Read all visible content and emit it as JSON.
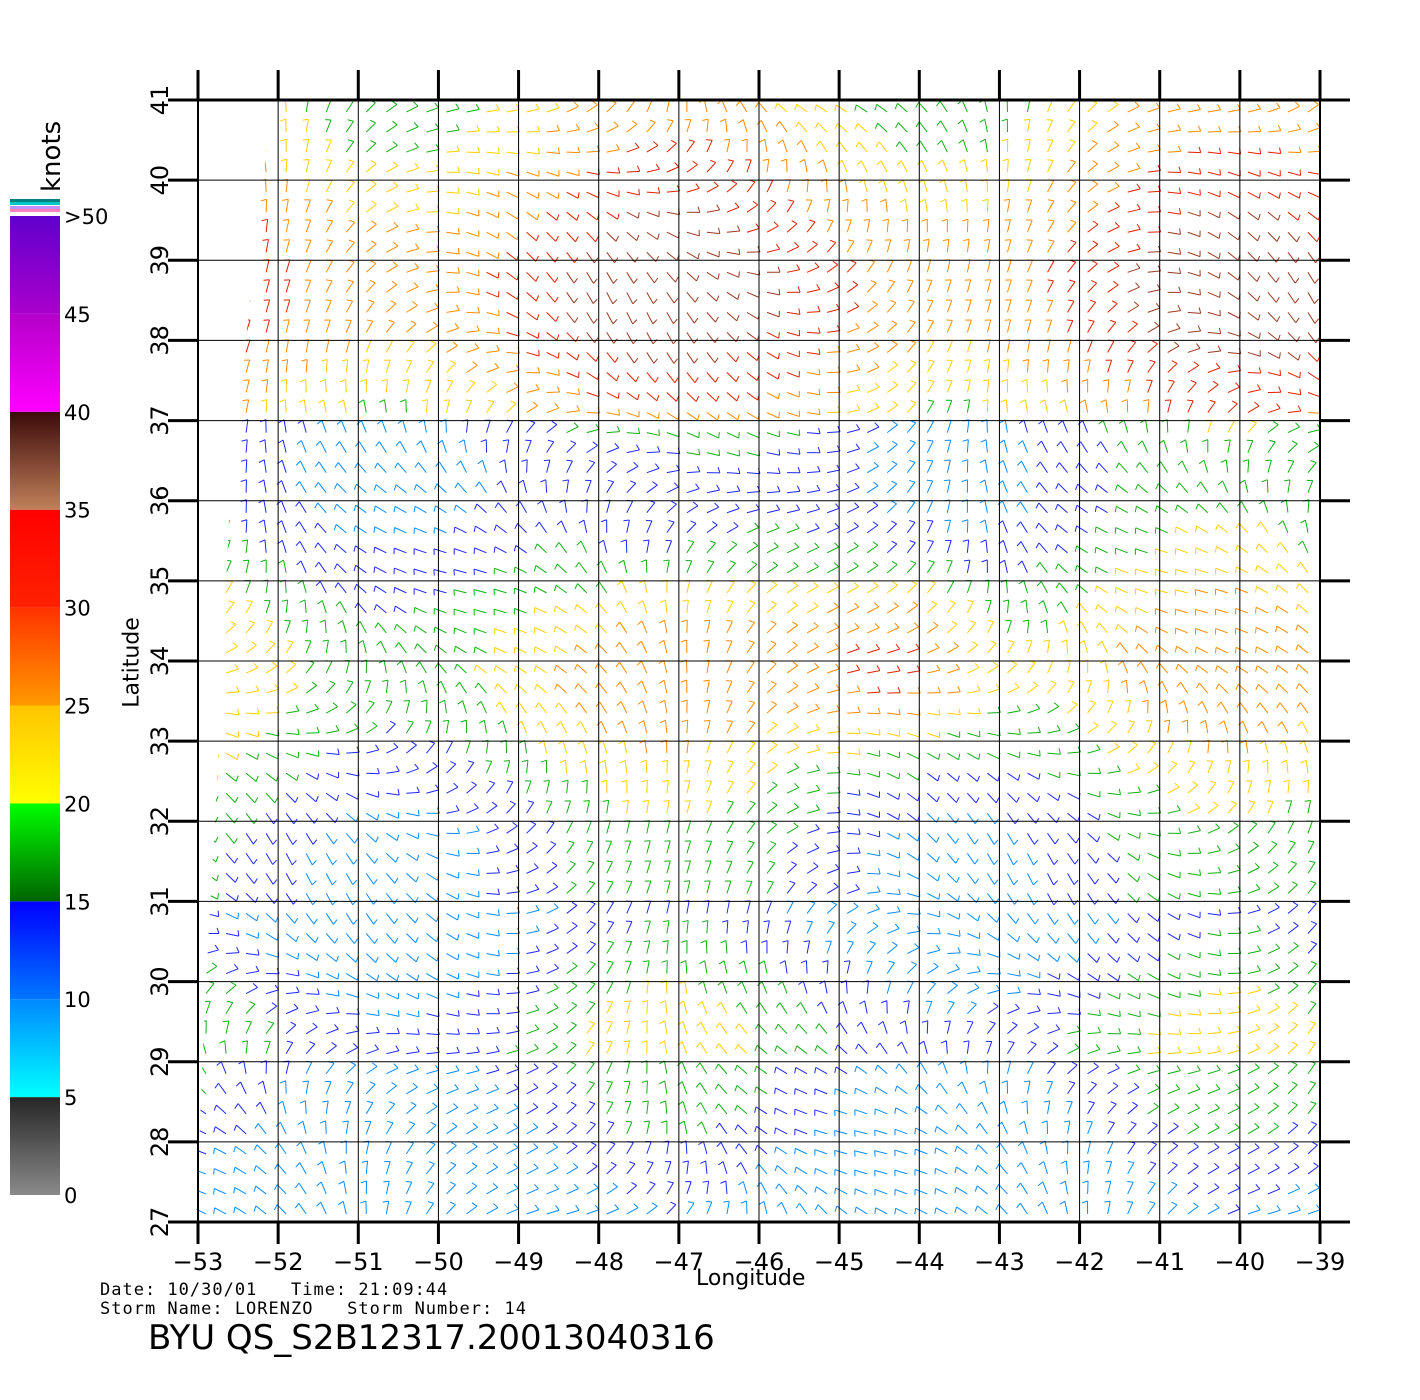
{
  "chart_data": {
    "type": "wind-vector-map",
    "xlabel": "Longitude",
    "ylabel": "Latitude",
    "xlim": [
      -53,
      -39
    ],
    "ylim": [
      27,
      41
    ],
    "x_ticks": [
      "−53",
      "−52",
      "−51",
      "−50",
      "−49",
      "−48",
      "−47",
      "−46",
      "−45",
      "−44",
      "−43",
      "−42",
      "−41",
      "−40",
      "−39"
    ],
    "y_ticks": [
      "27",
      "28",
      "29",
      "30",
      "31",
      "32",
      "33",
      "34",
      "35",
      "36",
      "37",
      "38",
      "39",
      "40",
      "41"
    ],
    "grid": true,
    "colorbar": {
      "title": "knots",
      "labels": [
        "0",
        "5",
        "10",
        "15",
        "20",
        "25",
        "30",
        "35",
        "40",
        "45",
        ">50"
      ],
      "segments": [
        {
          "from": 0,
          "to": 5,
          "colors": [
            "#8a8a8a",
            "#262626"
          ]
        },
        {
          "from": 5,
          "to": 10,
          "colors": [
            "#00ffff",
            "#0088ff"
          ]
        },
        {
          "from": 10,
          "to": 15,
          "colors": [
            "#0077ff",
            "#0000ff"
          ]
        },
        {
          "from": 15,
          "to": 20,
          "colors": [
            "#006400",
            "#00ff00"
          ]
        },
        {
          "from": 20,
          "to": 25,
          "colors": [
            "#ffff00",
            "#ffc400"
          ]
        },
        {
          "from": 25,
          "to": 30,
          "colors": [
            "#ff9900",
            "#ff3300"
          ]
        },
        {
          "from": 30,
          "to": 35,
          "colors": [
            "#ff2200",
            "#ff0000"
          ]
        },
        {
          "from": 35,
          "to": 40,
          "colors": [
            "#c0805a",
            "#3d0a0a"
          ]
        },
        {
          "from": 40,
          "to": 45,
          "colors": [
            "#ff00ff",
            "#b300c8"
          ]
        },
        {
          "from": 45,
          "to": 50,
          "colors": [
            "#aa00cc",
            "#6000cc"
          ]
        }
      ]
    }
  },
  "metadata": {
    "date_line": "Date: 10/30/01   Time: 21:09:44",
    "storm_line": "Storm Name: LORENZO   Storm Number: 14",
    "product_id": "BYU QS_S2B12317.20013040316"
  }
}
